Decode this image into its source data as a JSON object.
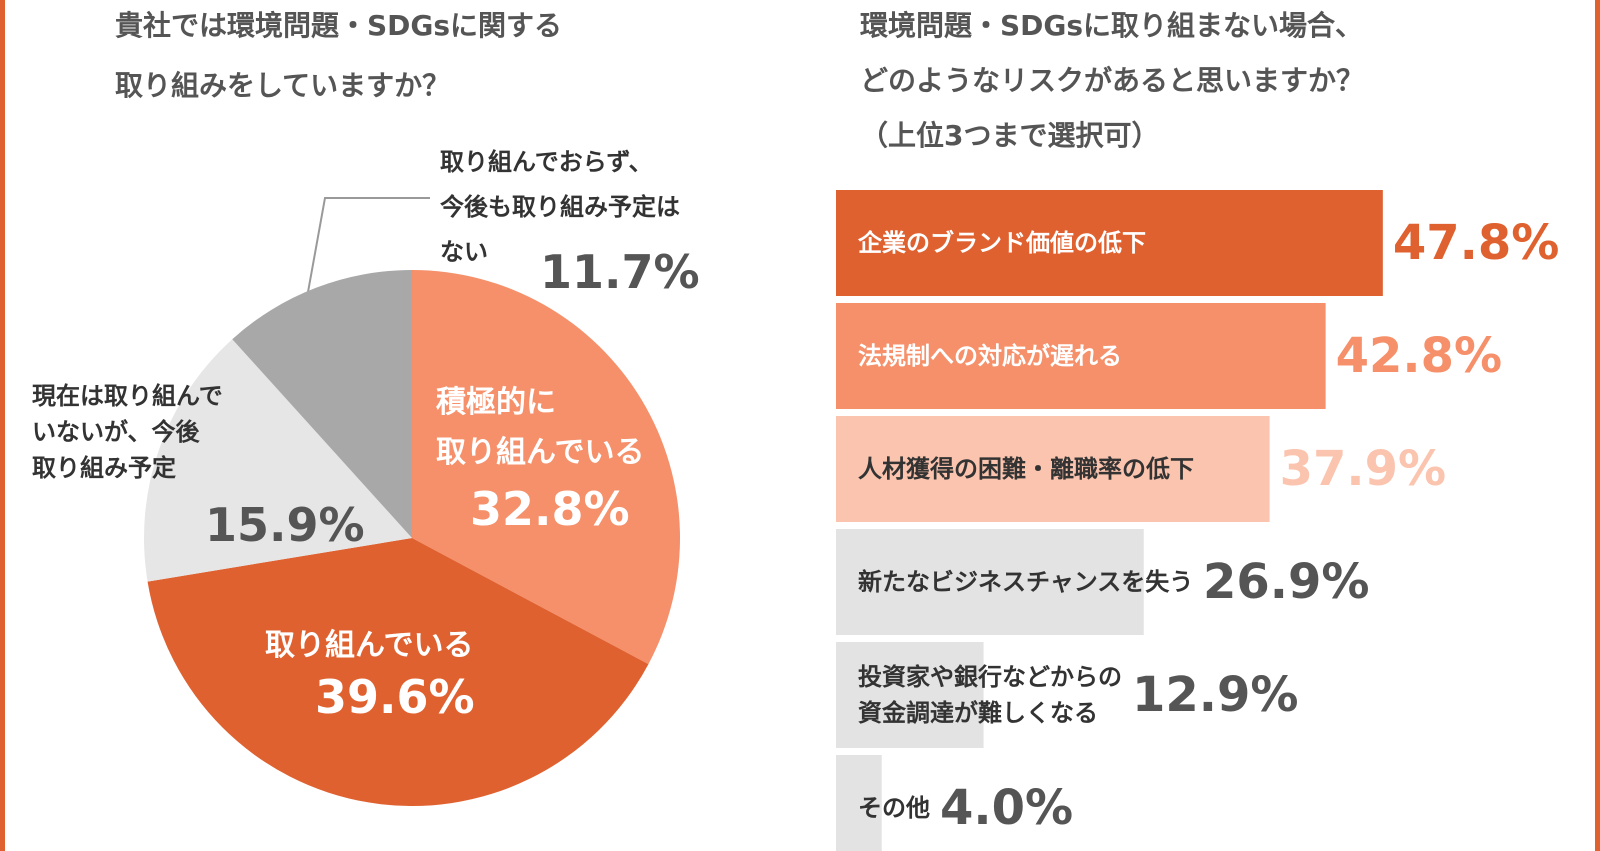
{
  "chart_data": [
    {
      "type": "pie",
      "title": "貴社では環境問題・SDGsに関する\n取り組みをしていますか？",
      "categories": [
        "積極的に\n取り組んでいる",
        "取り組んでいる",
        "現在は取り組んで\nいないが、今後\n取り組み予定",
        "取り組んでおらず、\n今後も取り組み予定は\nない"
      ],
      "values": [
        32.8,
        39.6,
        15.9,
        11.7
      ],
      "value_labels": [
        "32.8%",
        "39.6%",
        "15.9%",
        "11.7%"
      ],
      "colors": [
        "#f5906a",
        "#e06130",
        "#e6e6e6",
        "#a8a8a8"
      ]
    },
    {
      "type": "bar",
      "title": "環境問題・SDGsに取り組まない場合、\nどのようなリスクがあると思いますか？\n（上位3つまで選択可）",
      "categories": [
        "企業のブランド価値の低下",
        "法規制への対応が遅れる",
        "人材獲得の困難・離職率の低下",
        "新たなビジネスチャンスを失う",
        "投資家や銀行などからの\n資金調達が難しくなる",
        "その他"
      ],
      "values": [
        47.8,
        42.8,
        37.9,
        26.9,
        12.9,
        4.0
      ],
      "value_labels": [
        "47.8%",
        "42.8%",
        "37.9%",
        "26.9%",
        "12.9%",
        "4.0%"
      ],
      "colors": [
        "#e06130",
        "#f5906a",
        "#fbc4ae",
        "#e3e3e3",
        "#e3e3e3",
        "#e3e3e3"
      ],
      "xlim": [
        0,
        100
      ]
    }
  ]
}
